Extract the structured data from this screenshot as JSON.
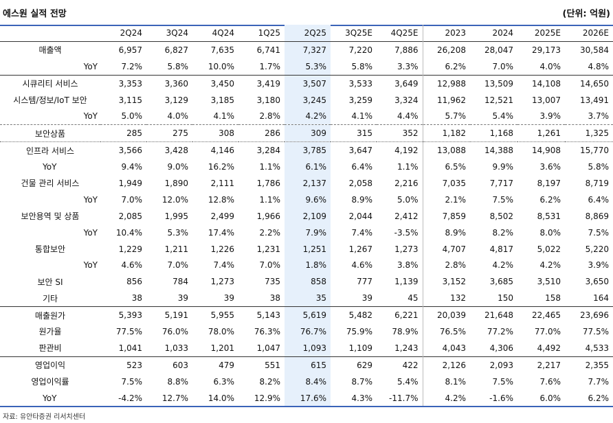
{
  "header": {
    "title": "에스원 실적 전망",
    "unit": "(단위: 억원)"
  },
  "columns": [
    "2Q24",
    "3Q24",
    "4Q24",
    "1Q25",
    "2Q25",
    "3Q25E",
    "4Q25E",
    "2023",
    "2024",
    "2025E",
    "2026E"
  ],
  "rows": [
    {
      "label": "매출액",
      "values": [
        "6,957",
        "6,827",
        "7,635",
        "6,741",
        "7,327",
        "7,220",
        "7,886",
        "26,208",
        "28,047",
        "29,173",
        "30,584"
      ]
    },
    {
      "label": "YoY",
      "values": [
        "7.2%",
        "5.8%",
        "10.0%",
        "1.7%",
        "5.3%",
        "5.8%",
        "3.3%",
        "6.2%",
        "7.0%",
        "4.0%",
        "4.8%"
      ]
    },
    {
      "label": "시큐리티 서비스",
      "values": [
        "3,353",
        "3,360",
        "3,450",
        "3,419",
        "3,507",
        "3,533",
        "3,649",
        "12,988",
        "13,509",
        "14,108",
        "14,650"
      ]
    },
    {
      "label": "시스템/정보/IoT 보안",
      "values": [
        "3,115",
        "3,129",
        "3,185",
        "3,180",
        "3,245",
        "3,259",
        "3,324",
        "11,962",
        "12,521",
        "13,007",
        "13,491"
      ]
    },
    {
      "label": "YoY",
      "values": [
        "5.0%",
        "4.0%",
        "4.1%",
        "2.8%",
        "4.2%",
        "4.1%",
        "4.4%",
        "5.7%",
        "5.4%",
        "3.9%",
        "3.7%"
      ]
    },
    {
      "label": "보안상품",
      "values": [
        "285",
        "275",
        "308",
        "286",
        "309",
        "315",
        "352",
        "1,182",
        "1,168",
        "1,261",
        "1,325"
      ]
    },
    {
      "label": "인프라 서비스",
      "values": [
        "3,566",
        "3,428",
        "4,146",
        "3,284",
        "3,785",
        "3,647",
        "4,192",
        "13,088",
        "14,388",
        "14,908",
        "15,770"
      ]
    },
    {
      "label": "YoY",
      "values": [
        "9.4%",
        "9.0%",
        "16.2%",
        "1.1%",
        "6.1%",
        "6.4%",
        "1.1%",
        "6.5%",
        "9.9%",
        "3.6%",
        "5.8%"
      ]
    },
    {
      "label": "건물 관리 서비스",
      "values": [
        "1,949",
        "1,890",
        "2,111",
        "1,786",
        "2,137",
        "2,058",
        "2,216",
        "7,035",
        "7,717",
        "8,197",
        "8,719"
      ]
    },
    {
      "label": "YoY",
      "values": [
        "7.0%",
        "12.0%",
        "12.8%",
        "1.1%",
        "9.6%",
        "8.9%",
        "5.0%",
        "2.1%",
        "7.5%",
        "6.2%",
        "6.4%"
      ]
    },
    {
      "label": "보안용역 및 상품",
      "values": [
        "2,085",
        "1,995",
        "2,499",
        "1,966",
        "2,109",
        "2,044",
        "2,412",
        "7,859",
        "8,502",
        "8,531",
        "8,869"
      ]
    },
    {
      "label": "YoY",
      "values": [
        "10.4%",
        "5.3%",
        "17.4%",
        "2.2%",
        "7.9%",
        "7.4%",
        "-3.5%",
        "8.9%",
        "8.2%",
        "8.0%",
        "7.5%"
      ]
    },
    {
      "label": "통합보안",
      "values": [
        "1,229",
        "1,211",
        "1,226",
        "1,231",
        "1,251",
        "1,267",
        "1,273",
        "4,707",
        "4,817",
        "5,022",
        "5,220"
      ]
    },
    {
      "label": "YoY",
      "values": [
        "4.6%",
        "7.0%",
        "7.4%",
        "7.0%",
        "1.8%",
        "4.6%",
        "3.8%",
        "2.8%",
        "4.2%",
        "4.2%",
        "3.9%"
      ]
    },
    {
      "label": "보안 SI",
      "values": [
        "856",
        "784",
        "1,273",
        "735",
        "858",
        "777",
        "1,139",
        "3,152",
        "3,685",
        "3,510",
        "3,650"
      ]
    },
    {
      "label": "기타",
      "values": [
        "38",
        "39",
        "39",
        "38",
        "35",
        "39",
        "45",
        "132",
        "150",
        "158",
        "164"
      ]
    },
    {
      "label": "매출원가",
      "values": [
        "5,393",
        "5,191",
        "5,955",
        "5,143",
        "5,619",
        "5,482",
        "6,221",
        "20,039",
        "21,648",
        "22,465",
        "23,696"
      ]
    },
    {
      "label": "원가율",
      "values": [
        "77.5%",
        "76.0%",
        "78.0%",
        "76.3%",
        "76.7%",
        "75.9%",
        "78.9%",
        "76.5%",
        "77.2%",
        "77.0%",
        "77.5%"
      ]
    },
    {
      "label": "판관비",
      "values": [
        "1,041",
        "1,033",
        "1,201",
        "1,047",
        "1,093",
        "1,109",
        "1,243",
        "4,043",
        "4,306",
        "4,492",
        "4,533"
      ]
    },
    {
      "label": "영업이익",
      "values": [
        "523",
        "603",
        "479",
        "551",
        "615",
        "629",
        "422",
        "2,126",
        "2,093",
        "2,217",
        "2,355"
      ]
    },
    {
      "label": "영업이익률",
      "values": [
        "7.5%",
        "8.8%",
        "6.3%",
        "8.2%",
        "8.4%",
        "8.7%",
        "5.4%",
        "8.1%",
        "7.5%",
        "7.6%",
        "7.7%"
      ]
    },
    {
      "label": "YoY",
      "values": [
        "-4.2%",
        "12.7%",
        "14.0%",
        "12.9%",
        "17.6%",
        "4.3%",
        "-11.7%",
        "4.2%",
        "-1.6%",
        "6.0%",
        "6.2%"
      ]
    }
  ],
  "source": "자료: 유안타증권 리서치센터",
  "colors": {
    "accent": "#3a63b8",
    "highlight": "#e6f0fb"
  }
}
